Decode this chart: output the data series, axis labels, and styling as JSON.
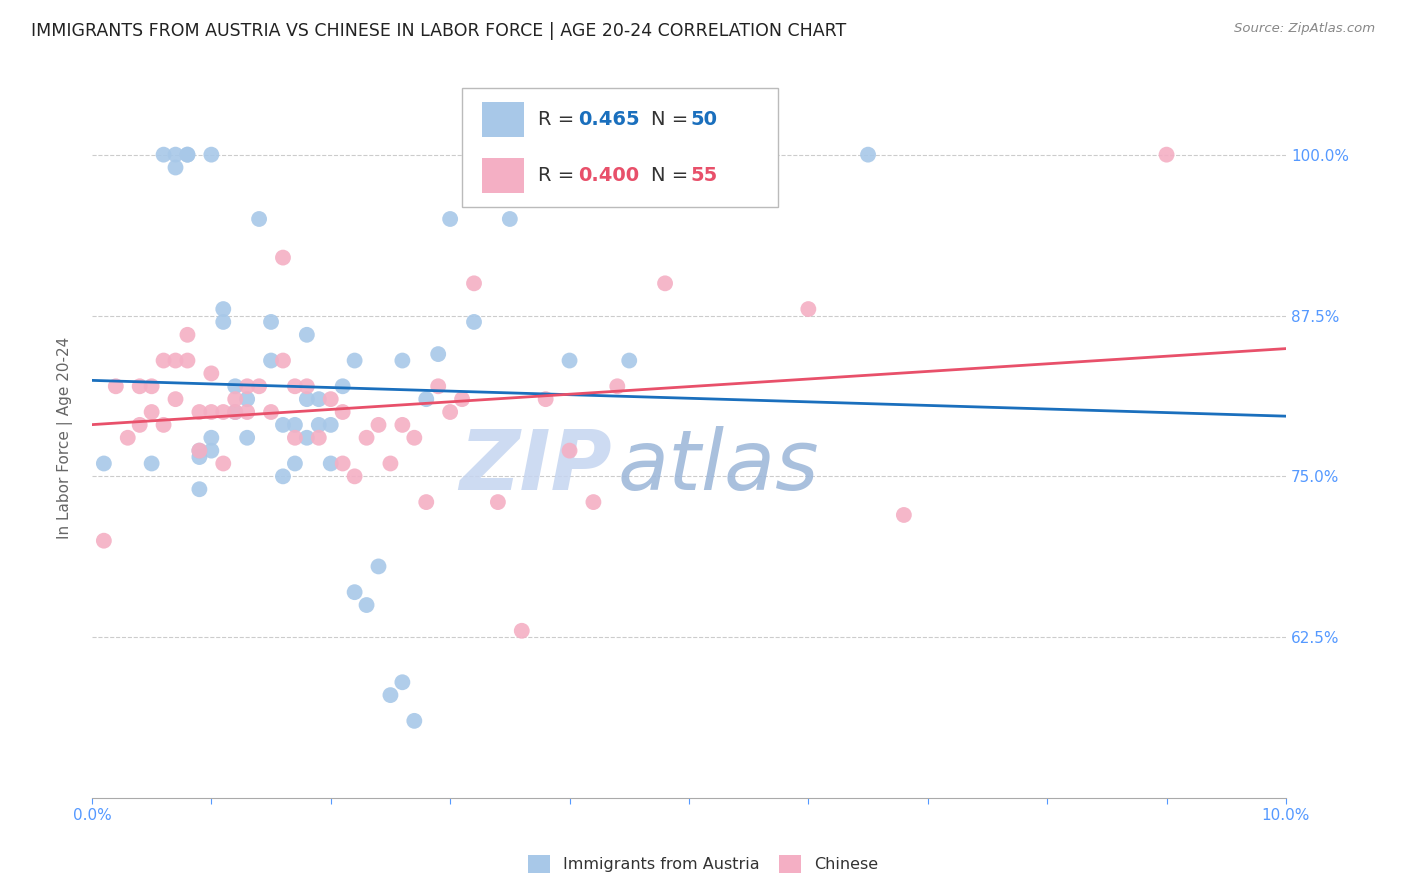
{
  "title": "IMMIGRANTS FROM AUSTRIA VS CHINESE IN LABOR FORCE | AGE 20-24 CORRELATION CHART",
  "source": "Source: ZipAtlas.com",
  "ylabel_label": "In Labor Force | Age 20-24",
  "legend_austria_r": "0.465",
  "legend_austria_n": "50",
  "legend_chinese_r": "0.400",
  "legend_chinese_n": "55",
  "austria_color": "#a8c8e8",
  "chinese_color": "#f4afc4",
  "austria_line_color": "#1a6fbd",
  "chinese_line_color": "#e8506a",
  "axis_label_color": "#5599ff",
  "watermark_zip_color": "#c5d5f0",
  "watermark_atlas_color": "#9ab5d8",
  "austria_x": [
    0.001,
    0.005,
    0.006,
    0.007,
    0.007,
    0.008,
    0.008,
    0.009,
    0.009,
    0.009,
    0.01,
    0.01,
    0.01,
    0.011,
    0.011,
    0.012,
    0.012,
    0.013,
    0.013,
    0.014,
    0.015,
    0.015,
    0.016,
    0.016,
    0.017,
    0.017,
    0.018,
    0.018,
    0.018,
    0.019,
    0.019,
    0.02,
    0.02,
    0.021,
    0.022,
    0.022,
    0.023,
    0.024,
    0.025,
    0.026,
    0.026,
    0.027,
    0.028,
    0.029,
    0.03,
    0.032,
    0.035,
    0.04,
    0.045,
    0.065
  ],
  "austria_y": [
    0.76,
    0.76,
    1.0,
    1.0,
    0.99,
    1.0,
    1.0,
    0.74,
    0.765,
    0.77,
    0.77,
    0.78,
    1.0,
    0.87,
    0.88,
    0.8,
    0.82,
    0.78,
    0.81,
    0.95,
    0.84,
    0.87,
    0.75,
    0.79,
    0.76,
    0.79,
    0.78,
    0.81,
    0.86,
    0.79,
    0.81,
    0.76,
    0.79,
    0.82,
    0.66,
    0.84,
    0.65,
    0.68,
    0.58,
    0.59,
    0.84,
    0.56,
    0.81,
    0.845,
    0.95,
    0.87,
    0.95,
    0.84,
    0.84,
    1.0
  ],
  "chinese_x": [
    0.001,
    0.002,
    0.003,
    0.004,
    0.004,
    0.005,
    0.005,
    0.006,
    0.006,
    0.007,
    0.007,
    0.008,
    0.008,
    0.009,
    0.009,
    0.01,
    0.01,
    0.011,
    0.011,
    0.012,
    0.012,
    0.013,
    0.013,
    0.014,
    0.015,
    0.016,
    0.016,
    0.017,
    0.017,
    0.018,
    0.019,
    0.02,
    0.021,
    0.021,
    0.022,
    0.023,
    0.024,
    0.025,
    0.026,
    0.027,
    0.028,
    0.029,
    0.03,
    0.031,
    0.032,
    0.034,
    0.036,
    0.038,
    0.04,
    0.042,
    0.044,
    0.048,
    0.06,
    0.068,
    0.09
  ],
  "chinese_y": [
    0.7,
    0.82,
    0.78,
    0.79,
    0.82,
    0.8,
    0.82,
    0.79,
    0.84,
    0.81,
    0.84,
    0.84,
    0.86,
    0.77,
    0.8,
    0.8,
    0.83,
    0.76,
    0.8,
    0.8,
    0.81,
    0.8,
    0.82,
    0.82,
    0.8,
    0.84,
    0.92,
    0.78,
    0.82,
    0.82,
    0.78,
    0.81,
    0.76,
    0.8,
    0.75,
    0.78,
    0.79,
    0.76,
    0.79,
    0.78,
    0.73,
    0.82,
    0.8,
    0.81,
    0.9,
    0.73,
    0.63,
    0.81,
    0.77,
    0.73,
    0.82,
    0.9,
    0.88,
    0.72,
    1.0
  ],
  "xlim": [
    0.0,
    0.1
  ],
  "ylim": [
    0.5,
    1.06
  ],
  "yticks": [
    0.625,
    0.75,
    0.875,
    1.0
  ],
  "ytick_labels": [
    "62.5%",
    "75.0%",
    "87.5%",
    "100.0%"
  ],
  "xtick_positions": [
    0.0,
    0.01,
    0.02,
    0.03,
    0.04,
    0.05,
    0.06,
    0.07,
    0.08,
    0.09,
    0.1
  ]
}
